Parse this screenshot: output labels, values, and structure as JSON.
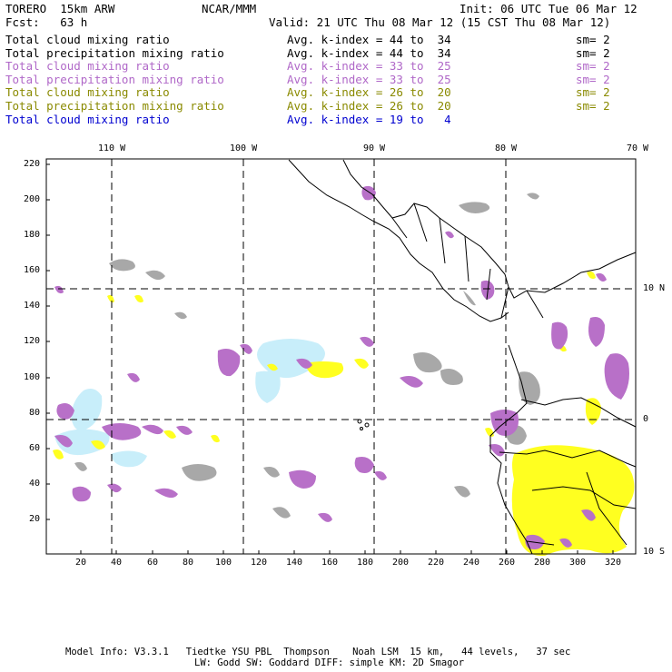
{
  "header": {
    "model": "TORERO  15km ARW",
    "org": "NCAR/MMM",
    "init": "Init: 06 UTC Tue 06 Mar 12",
    "fcst": "Fcst:   63 h",
    "valid": "Valid: 21 UTC Thu 08 Mar 12 (15 CST Thu 08 Mar 12)"
  },
  "legend": [
    {
      "field": "Total cloud mixing ratio",
      "kidx": "Avg. k-index = 44 to  34",
      "sm": "sm= 2",
      "color": "#000000"
    },
    {
      "field": "Total precipitation mixing ratio",
      "kidx": "Avg. k-index = 44 to  34",
      "sm": "sm= 2",
      "color": "#000000"
    },
    {
      "field": "Total cloud mixing ratio",
      "kidx": "Avg. k-index = 33 to  25",
      "sm": "sm= 2",
      "color": "#b068c8"
    },
    {
      "field": "Total precipitation mixing ratio",
      "kidx": "Avg. k-index = 33 to  25",
      "sm": "sm= 2",
      "color": "#b068c8"
    },
    {
      "field": "Total cloud mixing ratio",
      "kidx": "Avg. k-index = 26 to  20",
      "sm": "sm= 2",
      "color": "#8a8a00"
    },
    {
      "field": "Total precipitation mixing ratio",
      "kidx": "Avg. k-index = 26 to  20",
      "sm": "sm= 2",
      "color": "#8a8a00"
    },
    {
      "field": "Total cloud mixing ratio",
      "kidx": "Avg. k-index = 19 to   4",
      "sm": "",
      "color": "#0000d0"
    }
  ],
  "longitude_labels": [
    "110 W",
    "100 W",
    "90 W",
    "80 W",
    "70 W"
  ],
  "latitude_labels": [
    "10 N",
    "0",
    "10 S"
  ],
  "y_grid_labels": [
    "220",
    "200",
    "180",
    "160",
    "140",
    "120",
    "100",
    "80",
    "60",
    "40",
    "20"
  ],
  "x_grid_labels": [
    "20",
    "40",
    "60",
    "80",
    "100",
    "120",
    "140",
    "160",
    "180",
    "200",
    "220",
    "240",
    "260",
    "280",
    "300",
    "320"
  ],
  "footer": {
    "line1": "Model Info: V3.3.1   Tiedtke YSU PBL  Thompson    Noah LSM  15 km,   44 levels,   37 sec",
    "line2": "LW: Godd SW: Goddard DIFF: simple KM: 2D Smagor"
  },
  "colors": {
    "gray_cloud": "#a0a0a0",
    "purple": "#b068c0",
    "light_blue": "#c8eefa",
    "yellow": "#ffff20"
  }
}
